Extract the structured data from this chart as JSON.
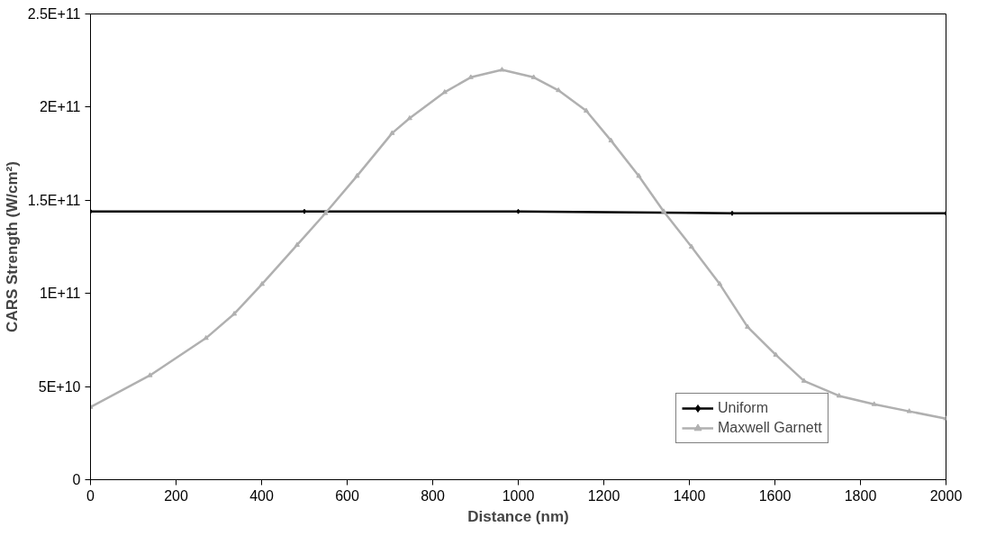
{
  "chart_data": {
    "type": "line",
    "xlabel": "Distance (nm)",
    "ylabel": "CARS Strength (W/cm²)",
    "xlim": [
      0,
      2000
    ],
    "xticks": [
      0,
      200,
      400,
      600,
      800,
      1000,
      1200,
      1400,
      1600,
      1800,
      2000
    ],
    "ylim": [
      0,
      250000000000.0
    ],
    "yticks": [
      {
        "value": 0,
        "label": "0"
      },
      {
        "value": 50000000000.0,
        "label": "5E+10"
      },
      {
        "value": 100000000000.0,
        "label": "1E+11"
      },
      {
        "value": 150000000000.0,
        "label": "1.5E+11"
      },
      {
        "value": 200000000000.0,
        "label": "2E+11"
      },
      {
        "value": 250000000000.0,
        "label": "2.5E+11"
      }
    ],
    "grid": false,
    "legend": "bottom right",
    "series": [
      {
        "name": "Uniform",
        "color": "#000000",
        "marker": "diamond",
        "x": [
          0,
          500,
          1000,
          1500,
          2000
        ],
        "values": [
          144000000000.0,
          144000000000.0,
          144000000000.0,
          143000000000.0,
          143000000000.0
        ]
      },
      {
        "name": "Maxwell Garnett",
        "color": "#b0b0b0",
        "marker": "triangle",
        "x": [
          0,
          139,
          270,
          336,
          401,
          483,
          549,
          623,
          705,
          746,
          828,
          889,
          962,
          1036,
          1094,
          1159,
          1217,
          1282,
          1340,
          1405,
          1471,
          1536,
          1602,
          1668,
          1750,
          1832,
          1914,
          2000
        ],
        "values": [
          39000000000.0,
          56000000000.0,
          76000000000.0,
          89000000000.0,
          105000000000.0,
          126000000000.0,
          143000000000.0,
          163000000000.0,
          186000000000.0,
          194000000000.0,
          208000000000.0,
          216000000000.0,
          220000000000.0,
          216000000000.0,
          209000000000.0,
          198000000000.0,
          182000000000.0,
          163000000000.0,
          144000000000.0,
          125000000000.0,
          105000000000.0,
          82000000000.0,
          67000000000.0,
          53000000000.0,
          45000000000.0,
          40500000000.0,
          36700000000.0,
          32800000000.0
        ]
      }
    ]
  }
}
